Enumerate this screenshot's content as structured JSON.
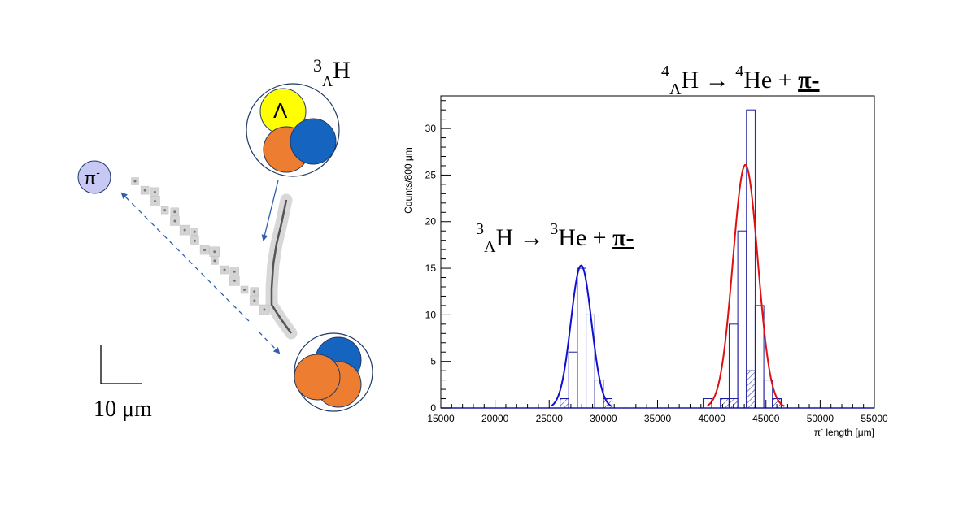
{
  "colors": {
    "histogram": "#1a1aa0",
    "fit_3": "#1010d0",
    "fit_4": "#e01010",
    "proton": "#1565c0",
    "neutron": "#ed7d31",
    "lambda": "#ffff00",
    "pion": "#c8c8f5"
  },
  "diagram": {
    "hypernucleus_label": {
      "sup": "3",
      "sub": "Λ",
      "base": "H"
    },
    "lambda_label": "Λ",
    "pion_label": {
      "base": "π",
      "sup": "-"
    },
    "scale_label": "10 μm",
    "icons": [
      "hypertriton-nucleus-icon",
      "decay-nucleus-icon",
      "pion-icon",
      "emulsion-track"
    ]
  },
  "chart_data": {
    "type": "bar",
    "title_4": {
      "sup1": "4",
      "sub": "Λ",
      "h": "H",
      "arrow": " → ",
      "sup2": "4",
      "rest": "He + ",
      "pion": "π-"
    },
    "title_3": {
      "sup1": "3",
      "sub": "Λ",
      "h": "H",
      "arrow": " → ",
      "sup2": "3",
      "rest": "He + ",
      "pion": "π-"
    },
    "ylabel": "Counts/800 μm",
    "xlabel": {
      "pre": "π",
      "sup": "-",
      "post": " length [μm]"
    },
    "xlim": [
      15000,
      55000
    ],
    "ylim": [
      0,
      33.5
    ],
    "xticks": [
      15000,
      20000,
      25000,
      30000,
      35000,
      40000,
      45000,
      50000,
      55000
    ],
    "yticks": [
      0,
      5,
      10,
      15,
      20,
      25,
      30
    ],
    "bin_width": 800,
    "series": [
      {
        "kind": "histogram",
        "bins": [
          {
            "x": 26000,
            "v": 1
          },
          {
            "x": 26800,
            "v": 6
          },
          {
            "x": 27600,
            "v": 15
          },
          {
            "x": 28400,
            "v": 10
          },
          {
            "x": 29200,
            "v": 3
          },
          {
            "x": 30000,
            "v": 1
          },
          {
            "x": 39200,
            "v": 1
          },
          {
            "x": 40800,
            "v": 1
          },
          {
            "x": 41600,
            "v": 9
          },
          {
            "x": 42400,
            "v": 19
          },
          {
            "x": 43200,
            "v": 32
          },
          {
            "x": 44000,
            "v": 11
          },
          {
            "x": 44800,
            "v": 3
          },
          {
            "x": 45600,
            "v": 1
          }
        ]
      },
      {
        "kind": "hatched",
        "bins": [
          {
            "x": 26000,
            "v": 1
          },
          {
            "x": 30000,
            "v": 1
          },
          {
            "x": 40800,
            "v": 1
          },
          {
            "x": 41600,
            "v": 1
          },
          {
            "x": 43200,
            "v": 4
          },
          {
            "x": 45600,
            "v": 1
          }
        ]
      },
      {
        "kind": "gauss",
        "amp": 15.3,
        "mean": 27950,
        "sigma": 950,
        "from": 25200,
        "to": 30700
      },
      {
        "kind": "gauss",
        "amp": 26.1,
        "mean": 43100,
        "sigma": 1150,
        "from": 39600,
        "to": 46700
      }
    ]
  }
}
